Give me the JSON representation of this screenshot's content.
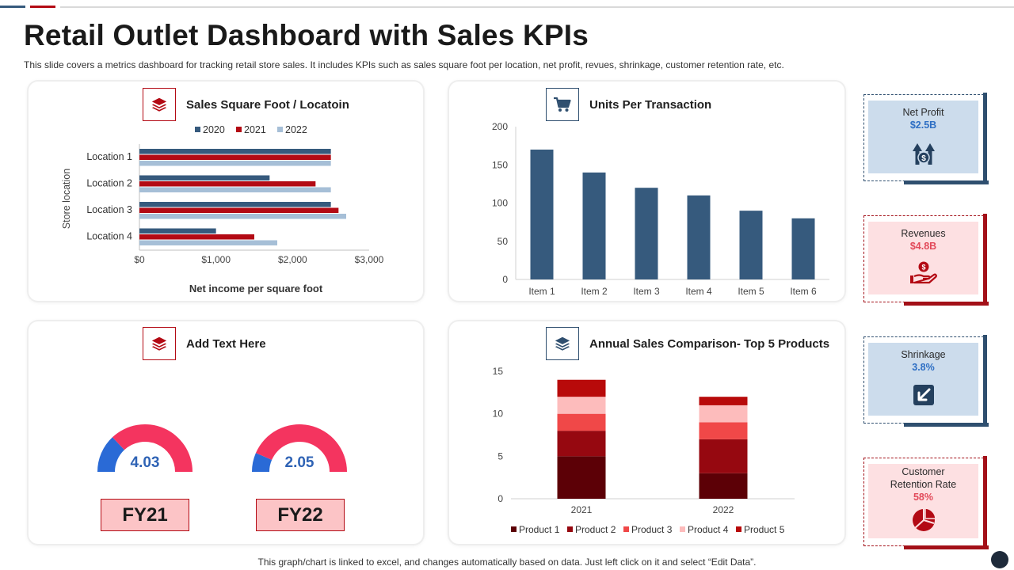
{
  "header": {
    "title": "Retail Outlet Dashboard with Sales KPIs",
    "subtitle": "This slide covers a metrics dashboard for tracking retail store sales. It includes KPIs such as sales square foot per location, net profit, revues, shrinkage, customer retention rate, etc."
  },
  "footer": {
    "note": "This graph/chart is linked to excel,  and changes automatically based on data. Just left click on it and select “Edit Data”."
  },
  "colors": {
    "navy": "#365a7d",
    "red": "#b30a14",
    "light_blue": "#a6bfd7"
  },
  "cards": {
    "sales_sqft": {
      "title": "Sales Square Foot / Locatoin",
      "icon": "layers-icon"
    },
    "units": {
      "title": "Units Per Transaction",
      "icon": "cart-icon"
    },
    "add_text": {
      "title": "Add Text Here",
      "icon": "layers-icon"
    },
    "annual": {
      "title": "Annual Sales Comparison- Top 5 Products",
      "icon": "layers-icon"
    }
  },
  "gauges": [
    {
      "value": "4.03",
      "label": "FY21",
      "fill_fraction": 0.26
    },
    {
      "value": "2.05",
      "label": "FY22",
      "fill_fraction": 0.13
    }
  ],
  "kpis": [
    {
      "label": "Net Profit",
      "value": "$2.5B",
      "icon": "money-arrows-up-icon",
      "theme": "blue"
    },
    {
      "label": "Revenues",
      "value": "$4.8B",
      "icon": "hand-coin-icon",
      "theme": "red"
    },
    {
      "label": "Shrinkage",
      "value": "3.8%",
      "icon": "arrow-down-left-icon",
      "theme": "blue"
    },
    {
      "label": "Customer Retention Rate",
      "value": "58%",
      "icon": "pie-icon",
      "theme": "red"
    }
  ],
  "chart_data": [
    {
      "type": "bar",
      "orientation": "horizontal",
      "categories": [
        "Location 1",
        "Location 2",
        "Location 3",
        "Location 4"
      ],
      "series": [
        {
          "name": "2020",
          "values": [
            2500,
            1700,
            2500,
            1000
          ],
          "color": "#365a7d"
        },
        {
          "name": "2021",
          "values": [
            2500,
            2300,
            2600,
            1500
          ],
          "color": "#b30a14"
        },
        {
          "name": "2022",
          "values": [
            2500,
            2500,
            2700,
            1800
          ],
          "color": "#a6bfd7"
        }
      ],
      "xlabel": "Net income per square foot",
      "ylabel": "Store location",
      "xlim": [
        0,
        3000
      ],
      "xticks": [
        "$0",
        "$1,000",
        "$2,000",
        "$3,000"
      ],
      "xtick_values": [
        0,
        1000,
        2000,
        3000
      ],
      "legend": "top"
    },
    {
      "type": "bar",
      "categories": [
        "Item 1",
        "Item 2",
        "Item 3",
        "Item 4",
        "Item 5",
        "Item 6"
      ],
      "values": [
        170,
        140,
        120,
        110,
        90,
        80
      ],
      "color": "#365a7d",
      "ylim": [
        0,
        200
      ],
      "yticks": [
        0,
        50,
        100,
        150,
        200
      ]
    },
    {
      "type": "bar",
      "stacked": true,
      "categories": [
        "2021",
        "2022"
      ],
      "series": [
        {
          "name": "Product 1",
          "values": [
            5,
            3
          ],
          "color": "#5c0006"
        },
        {
          "name": "Product 2",
          "values": [
            3,
            4
          ],
          "color": "#960810"
        },
        {
          "name": "Product 3",
          "values": [
            2,
            2
          ],
          "color": "#f04848"
        },
        {
          "name": "Product 4",
          "values": [
            2,
            2
          ],
          "color": "#fdbcbc"
        },
        {
          "name": "Product 5",
          "values": [
            2,
            1
          ],
          "color": "#b80a0a"
        }
      ],
      "ylim": [
        0,
        15
      ],
      "yticks": [
        0,
        5,
        10,
        15
      ],
      "legend": "bottom"
    }
  ]
}
